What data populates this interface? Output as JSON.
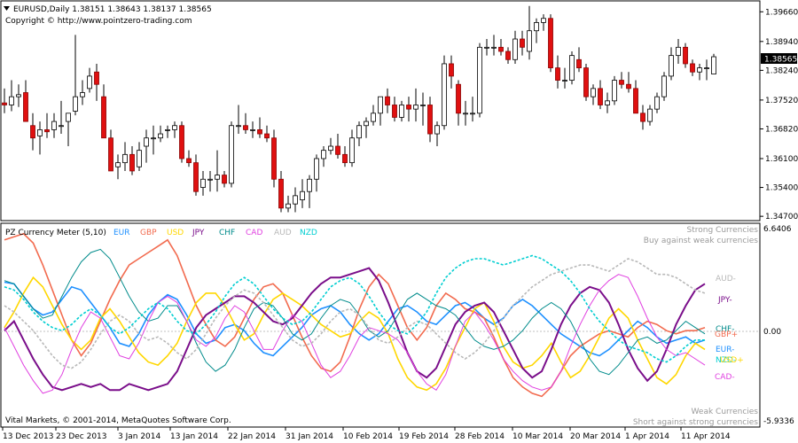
{
  "header": {
    "symbol_line": "EURUSD,Daily  1.38151 1.38643 1.38137 1.38565",
    "copyright": "Copyright © http://www.pointzero-trading.com",
    "current_price": "1.38565",
    "collapse_icon": "triangle-down-icon"
  },
  "price_axis": {
    "ticks": [
      "1.39660",
      "1.38940",
      "1.38240",
      "1.37520",
      "1.36820",
      "1.36100",
      "1.35400",
      "1.34700"
    ]
  },
  "meter": {
    "title": "PZ Currency Meter (5,10)",
    "legend": [
      {
        "label": "EUR",
        "color": "#1e90ff"
      },
      {
        "label": "GBP",
        "color": "#f26b4f"
      },
      {
        "label": "USD",
        "color": "#ffd700"
      },
      {
        "label": "JPY",
        "color": "#7a0e8a"
      },
      {
        "label": "CHF",
        "color": "#008b8b"
      },
      {
        "label": "CAD",
        "color": "#e040e0"
      },
      {
        "label": "AUD",
        "color": "#b8b8b8"
      },
      {
        "label": "NZD",
        "color": "#00ced1"
      }
    ],
    "strong_label_1": "Strong Currencies",
    "strong_label_2": "Buy against weak currencies",
    "weak_label_1": "Weak Currencies",
    "weak_label_2": "Short against strong currencies",
    "top_value": "6.6406",
    "zero_value": "0.00",
    "bottom_value": "-5.9336",
    "footer": "Vital Markets, © 2001-2014, MetaQuotes Software Corp.",
    "end_labels": [
      {
        "label": "AUD-",
        "color": "#b8b8b8"
      },
      {
        "label": "JPY-",
        "color": "#7a0e8a"
      },
      {
        "label": "CHF-",
        "color": "#008b8b"
      },
      {
        "label": "GBP+",
        "color": "#f26b4f"
      },
      {
        "label": "EUR-",
        "color": "#1e90ff"
      },
      {
        "label": "NZD-",
        "color": "#00ced1"
      },
      {
        "label": "USD+",
        "color": "#ffd700"
      },
      {
        "label": "CAD-",
        "color": "#e040e0"
      }
    ]
  },
  "time_axis": {
    "ticks": [
      "13 Dec 2013",
      "23 Dec 2013",
      "3 Jan 2014",
      "13 Jan 2014",
      "22 Jan 2014",
      "31 Jan 2014",
      "10 Feb 2014",
      "19 Feb 2014",
      "28 Feb 2014",
      "10 Mar 2014",
      "20 Mar 2014",
      "1 Apr 2014",
      "11 Apr 2014"
    ]
  },
  "chart_data": {
    "type": "candlestick",
    "price_ticks": [
      1.3966,
      1.3894,
      1.3824,
      1.3752,
      1.3682,
      1.361,
      1.354,
      1.347
    ],
    "ylim": [
      1.3466,
      1.3986
    ],
    "candles": [
      [
        1.3745,
        1.378,
        1.372,
        1.374
      ],
      [
        1.374,
        1.38,
        1.3725,
        1.376
      ],
      [
        1.376,
        1.379,
        1.3735,
        1.3765
      ],
      [
        1.377,
        1.38,
        1.37,
        1.37
      ],
      [
        1.369,
        1.372,
        1.363,
        1.366
      ],
      [
        1.3665,
        1.37,
        1.362,
        1.368
      ],
      [
        1.368,
        1.372,
        1.366,
        1.3675
      ],
      [
        1.368,
        1.372,
        1.366,
        1.37
      ],
      [
        1.369,
        1.375,
        1.367,
        1.369
      ],
      [
        1.37,
        1.372,
        1.364,
        1.372
      ],
      [
        1.3725,
        1.391,
        1.3715,
        1.376
      ],
      [
        1.376,
        1.38,
        1.374,
        1.377
      ],
      [
        1.378,
        1.383,
        1.377,
        1.381
      ],
      [
        1.382,
        1.384,
        1.375,
        1.379
      ],
      [
        1.376,
        1.379,
        1.366,
        1.366
      ],
      [
        1.366,
        1.368,
        1.358,
        1.358
      ],
      [
        1.359,
        1.362,
        1.356,
        1.36
      ],
      [
        1.36,
        1.365,
        1.358,
        1.362
      ],
      [
        1.362,
        1.364,
        1.357,
        1.358
      ],
      [
        1.359,
        1.365,
        1.358,
        1.363
      ],
      [
        1.364,
        1.368,
        1.36,
        1.366
      ],
      [
        1.366,
        1.369,
        1.362,
        1.366
      ],
      [
        1.366,
        1.369,
        1.365,
        1.367
      ],
      [
        1.368,
        1.369,
        1.366,
        1.368
      ],
      [
        1.368,
        1.37,
        1.366,
        1.369
      ],
      [
        1.369,
        1.37,
        1.36,
        1.361
      ],
      [
        1.361,
        1.363,
        1.359,
        1.36
      ],
      [
        1.36,
        1.362,
        1.352,
        1.353
      ],
      [
        1.354,
        1.358,
        1.352,
        1.356
      ],
      [
        1.356,
        1.358,
        1.353,
        1.356
      ],
      [
        1.356,
        1.363,
        1.353,
        1.357
      ],
      [
        1.357,
        1.358,
        1.354,
        1.355
      ],
      [
        1.355,
        1.37,
        1.354,
        1.369
      ],
      [
        1.369,
        1.374,
        1.367,
        1.369
      ],
      [
        1.369,
        1.372,
        1.367,
        1.368
      ],
      [
        1.368,
        1.37,
        1.366,
        1.368
      ],
      [
        1.368,
        1.371,
        1.366,
        1.367
      ],
      [
        1.367,
        1.369,
        1.365,
        1.366
      ],
      [
        1.366,
        1.368,
        1.354,
        1.356
      ],
      [
        1.356,
        1.358,
        1.348,
        1.349
      ],
      [
        1.349,
        1.352,
        1.348,
        1.35
      ],
      [
        1.35,
        1.354,
        1.348,
        1.352
      ],
      [
        1.351,
        1.356,
        1.349,
        1.353
      ],
      [
        1.353,
        1.357,
        1.349,
        1.356
      ],
      [
        1.356,
        1.362,
        1.353,
        1.361
      ],
      [
        1.361,
        1.364,
        1.359,
        1.363
      ],
      [
        1.363,
        1.366,
        1.362,
        1.364
      ],
      [
        1.364,
        1.367,
        1.361,
        1.362
      ],
      [
        1.362,
        1.364,
        1.359,
        1.36
      ],
      [
        1.36,
        1.368,
        1.359,
        1.366
      ],
      [
        1.366,
        1.37,
        1.364,
        1.369
      ],
      [
        1.369,
        1.371,
        1.366,
        1.37
      ],
      [
        1.37,
        1.374,
        1.369,
        1.372
      ],
      [
        1.372,
        1.376,
        1.369,
        1.376
      ],
      [
        1.376,
        1.378,
        1.372,
        1.374
      ],
      [
        1.374,
        1.376,
        1.37,
        1.371
      ],
      [
        1.371,
        1.375,
        1.37,
        1.374
      ],
      [
        1.374,
        1.376,
        1.37,
        1.373
      ],
      [
        1.373,
        1.378,
        1.37,
        1.374
      ],
      [
        1.374,
        1.377,
        1.369,
        1.374
      ],
      [
        1.374,
        1.376,
        1.365,
        1.367
      ],
      [
        1.367,
        1.37,
        1.364,
        1.369
      ],
      [
        1.369,
        1.386,
        1.368,
        1.384
      ],
      [
        1.384,
        1.386,
        1.378,
        1.381
      ],
      [
        1.379,
        1.38,
        1.369,
        1.372
      ],
      [
        1.372,
        1.375,
        1.369,
        1.372
      ],
      [
        1.372,
        1.376,
        1.37,
        1.372
      ],
      [
        1.372,
        1.389,
        1.371,
        1.388
      ],
      [
        1.388,
        1.39,
        1.386,
        1.388
      ],
      [
        1.388,
        1.391,
        1.386,
        1.388
      ],
      [
        1.388,
        1.39,
        1.386,
        1.387
      ],
      [
        1.387,
        1.388,
        1.384,
        1.385
      ],
      [
        1.385,
        1.392,
        1.384,
        1.39
      ],
      [
        1.39,
        1.392,
        1.386,
        1.388
      ],
      [
        1.387,
        1.398,
        1.385,
        1.392
      ],
      [
        1.392,
        1.395,
        1.389,
        1.394
      ],
      [
        1.394,
        1.396,
        1.392,
        1.395
      ],
      [
        1.395,
        1.396,
        1.382,
        1.383
      ],
      [
        1.383,
        1.386,
        1.378,
        1.38
      ],
      [
        1.38,
        1.383,
        1.378,
        1.38
      ],
      [
        1.38,
        1.387,
        1.379,
        1.386
      ],
      [
        1.385,
        1.388,
        1.382,
        1.383
      ],
      [
        1.383,
        1.384,
        1.375,
        1.376
      ],
      [
        1.376,
        1.379,
        1.374,
        1.378
      ],
      [
        1.378,
        1.38,
        1.373,
        1.374
      ],
      [
        1.374,
        1.377,
        1.372,
        1.375
      ],
      [
        1.375,
        1.381,
        1.374,
        1.38
      ],
      [
        1.38,
        1.382,
        1.378,
        1.379
      ],
      [
        1.379,
        1.382,
        1.377,
        1.378
      ],
      [
        1.378,
        1.38,
        1.372,
        1.372
      ],
      [
        1.372,
        1.374,
        1.368,
        1.37
      ],
      [
        1.37,
        1.374,
        1.369,
        1.373
      ],
      [
        1.373,
        1.377,
        1.372,
        1.376
      ],
      [
        1.376,
        1.382,
        1.375,
        1.381
      ],
      [
        1.381,
        1.388,
        1.38,
        1.386
      ],
      [
        1.386,
        1.39,
        1.384,
        1.388
      ],
      [
        1.388,
        1.389,
        1.383,
        1.384
      ],
      [
        1.384,
        1.385,
        1.381,
        1.382
      ],
      [
        1.382,
        1.384,
        1.38,
        1.383
      ],
      [
        1.383,
        1.385,
        1.38,
        1.383
      ],
      [
        1.3815,
        1.3864,
        1.3814,
        1.3857
      ]
    ],
    "meter_ylim": [
      -5.9336,
      6.6406
    ],
    "meter_series": [
      {
        "name": "EUR",
        "values": [
          3.1,
          3.0,
          2.2,
          1.4,
          1.0,
          1.2,
          2.0,
          2.8,
          2.6,
          1.8,
          1.0,
          0.2,
          -0.8,
          -1.0,
          -0.2,
          1.0,
          1.8,
          2.3,
          2.0,
          1.0,
          -0.2,
          -0.8,
          -0.6,
          0.2,
          0.4,
          0.0,
          -0.8,
          -1.4,
          -1.6,
          -1.0,
          -0.4,
          0.2,
          1.0,
          1.4,
          1.6,
          1.2,
          0.4,
          -0.2,
          -0.6,
          -0.2,
          0.6,
          1.4,
          1.6,
          1.2,
          0.6,
          0.4,
          1.0,
          1.6,
          1.8,
          1.4,
          0.8,
          0.4,
          0.8,
          1.6,
          2.0,
          1.6,
          1.0,
          0.4,
          -0.2,
          -0.6,
          -1.0,
          -1.4,
          -1.6,
          -1.2,
          -0.6,
          0.0,
          0.6,
          0.2,
          -0.4,
          -0.8,
          -0.6,
          -0.4,
          -0.8,
          -0.6
        ]
      },
      {
        "name": "GBP",
        "values": [
          5.8,
          6.0,
          6.2,
          5.6,
          4.2,
          2.6,
          1.0,
          -0.6,
          -1.6,
          -0.8,
          0.6,
          2.0,
          3.2,
          4.2,
          4.6,
          5.0,
          5.4,
          5.8,
          4.8,
          3.2,
          1.6,
          0.4,
          -0.6,
          -1.0,
          -0.4,
          0.8,
          2.0,
          2.8,
          3.0,
          2.4,
          1.0,
          -0.4,
          -1.6,
          -2.4,
          -2.6,
          -2.0,
          -0.4,
          1.4,
          2.8,
          3.6,
          3.0,
          1.6,
          0.2,
          -0.6,
          0.2,
          1.6,
          2.4,
          2.0,
          1.4,
          1.2,
          0.8,
          -0.4,
          -1.8,
          -3.0,
          -3.6,
          -4.0,
          -4.2,
          -3.6,
          -2.6,
          -1.6,
          -1.0,
          -0.6,
          -0.2,
          0.0,
          -0.2,
          -0.4,
          0.2,
          0.6,
          0.4,
          0.0,
          -0.2,
          0.0,
          0.0,
          0.2
        ]
      },
      {
        "name": "USD",
        "values": [
          0.2,
          1.2,
          2.4,
          3.4,
          2.8,
          1.6,
          0.4,
          -0.6,
          -1.2,
          -0.6,
          0.8,
          1.4,
          0.6,
          -0.4,
          -1.4,
          -2.0,
          -2.2,
          -1.6,
          -0.8,
          0.6,
          1.8,
          2.4,
          2.4,
          1.6,
          0.4,
          -0.6,
          -0.2,
          1.0,
          2.0,
          2.4,
          2.0,
          1.6,
          1.0,
          0.4,
          0.0,
          -0.4,
          -0.2,
          0.6,
          1.2,
          0.8,
          -0.2,
          -1.8,
          -3.0,
          -3.6,
          -3.8,
          -3.4,
          -2.4,
          -1.0,
          0.2,
          1.4,
          1.8,
          0.6,
          -1.0,
          -2.0,
          -2.4,
          -2.2,
          -1.6,
          -0.8,
          -2.0,
          -3.0,
          -2.6,
          -1.6,
          -0.4,
          0.8,
          1.4,
          0.8,
          -0.6,
          -1.8,
          -3.0,
          -3.4,
          -2.8,
          -1.6,
          -0.8,
          -1.2
        ]
      },
      {
        "name": "JPY",
        "values": [
          0.0,
          0.6,
          -0.6,
          -1.8,
          -2.8,
          -3.6,
          -3.8,
          -3.6,
          -3.4,
          -3.6,
          -3.4,
          -3.8,
          -3.8,
          -3.4,
          -3.6,
          -3.8,
          -3.6,
          -3.4,
          -2.6,
          -1.2,
          0.2,
          1.0,
          1.4,
          1.8,
          2.2,
          2.2,
          1.8,
          1.2,
          0.6,
          0.4,
          0.8,
          1.6,
          2.4,
          3.0,
          3.4,
          3.4,
          3.6,
          3.8,
          4.0,
          3.2,
          1.8,
          0.2,
          -1.4,
          -2.6,
          -3.0,
          -2.4,
          -1.0,
          0.4,
          1.2,
          1.6,
          1.8,
          1.2,
          0.0,
          -1.2,
          -2.4,
          -3.0,
          -2.6,
          -1.2,
          0.4,
          1.6,
          2.4,
          2.8,
          2.6,
          1.8,
          0.4,
          -1.2,
          -2.4,
          -3.2,
          -2.6,
          -1.2,
          0.4,
          1.6,
          2.6,
          3.0
        ]
      },
      {
        "name": "CHF",
        "values": [
          3.2,
          3.0,
          2.2,
          1.4,
          0.8,
          1.0,
          2.2,
          3.4,
          4.4,
          5.0,
          5.2,
          4.6,
          3.4,
          2.2,
          1.2,
          0.6,
          0.8,
          1.6,
          1.6,
          0.6,
          -0.8,
          -2.0,
          -2.6,
          -2.2,
          -1.2,
          0.2,
          1.4,
          1.8,
          1.6,
          0.8,
          -0.2,
          -0.6,
          -0.2,
          0.8,
          1.6,
          2.0,
          1.8,
          1.0,
          0.0,
          -0.4,
          0.0,
          1.0,
          2.0,
          2.4,
          2.0,
          1.6,
          1.4,
          1.0,
          0.2,
          -0.6,
          -1.0,
          -1.2,
          -1.0,
          -0.6,
          0.0,
          0.8,
          1.4,
          1.8,
          1.4,
          0.6,
          -0.6,
          -1.8,
          -2.6,
          -2.8,
          -2.2,
          -1.4,
          -0.6,
          -0.4,
          -0.8,
          -0.6,
          0.0,
          0.6,
          0.2,
          -0.2
        ]
      },
      {
        "name": "CAD",
        "values": [
          0.2,
          -1.0,
          -2.2,
          -3.2,
          -4.0,
          -3.8,
          -2.8,
          -1.2,
          0.2,
          1.2,
          0.8,
          -0.4,
          -1.6,
          -1.8,
          -0.8,
          0.6,
          1.8,
          2.2,
          1.8,
          0.6,
          -0.6,
          -1.0,
          -0.4,
          0.8,
          1.6,
          1.2,
          0.0,
          -1.2,
          -1.2,
          0.0,
          1.0,
          0.6,
          -0.8,
          -2.2,
          -3.0,
          -2.6,
          -1.6,
          -0.4,
          0.2,
          0.0,
          -0.2,
          -0.6,
          -1.4,
          -2.6,
          -3.4,
          -3.8,
          -2.8,
          -1.0,
          0.6,
          1.2,
          0.4,
          -0.6,
          -1.8,
          -2.6,
          -3.2,
          -3.6,
          -3.8,
          -3.6,
          -2.6,
          -1.0,
          0.4,
          1.6,
          2.6,
          3.2,
          3.6,
          3.4,
          2.2,
          0.8,
          -0.4,
          -1.2,
          -1.6,
          -1.4,
          -1.8,
          -2.2
        ]
      },
      {
        "name": "AUD",
        "values": [
          1.6,
          1.2,
          0.6,
          0.0,
          -0.8,
          -1.6,
          -2.2,
          -2.4,
          -2.0,
          -1.2,
          -0.2,
          0.6,
          1.0,
          0.6,
          -0.2,
          -0.6,
          -0.4,
          -0.8,
          -1.4,
          -1.8,
          -1.2,
          -0.2,
          0.8,
          1.6,
          2.2,
          2.6,
          2.4,
          1.8,
          1.0,
          0.2,
          -0.6,
          -1.0,
          -0.8,
          -0.2,
          0.6,
          1.2,
          1.4,
          1.0,
          0.2,
          -0.6,
          -0.8,
          -0.4,
          0.2,
          0.6,
          0.4,
          -0.2,
          -0.8,
          -1.4,
          -1.8,
          -1.4,
          -0.8,
          0.0,
          0.8,
          1.6,
          2.2,
          2.8,
          3.2,
          3.6,
          3.8,
          4.0,
          4.2,
          4.2,
          4.0,
          3.8,
          4.2,
          4.6,
          4.4,
          4.0,
          3.6,
          3.6,
          3.4,
          3.0,
          2.6,
          2.4
        ]
      },
      {
        "name": "NZD",
        "values": [
          2.8,
          2.6,
          2.0,
          1.2,
          0.6,
          0.2,
          0.0,
          0.4,
          1.0,
          1.4,
          1.0,
          0.2,
          -0.2,
          0.2,
          0.8,
          1.4,
          1.8,
          1.4,
          0.6,
          0.0,
          -0.2,
          0.4,
          1.2,
          2.2,
          3.0,
          3.4,
          3.0,
          2.2,
          1.4,
          0.8,
          0.4,
          0.6,
          1.2,
          2.0,
          2.8,
          3.2,
          3.4,
          3.0,
          2.2,
          1.2,
          0.4,
          0.0,
          -0.2,
          0.4,
          1.2,
          2.4,
          3.4,
          4.0,
          4.4,
          4.6,
          4.6,
          4.4,
          4.2,
          4.4,
          4.6,
          4.8,
          4.6,
          4.2,
          3.8,
          3.2,
          2.4,
          1.4,
          0.6,
          0.0,
          -0.6,
          -1.0,
          -1.2,
          -1.4,
          -1.8,
          -2.0,
          -1.6,
          -1.0,
          -0.6,
          -0.6
        ]
      }
    ]
  }
}
